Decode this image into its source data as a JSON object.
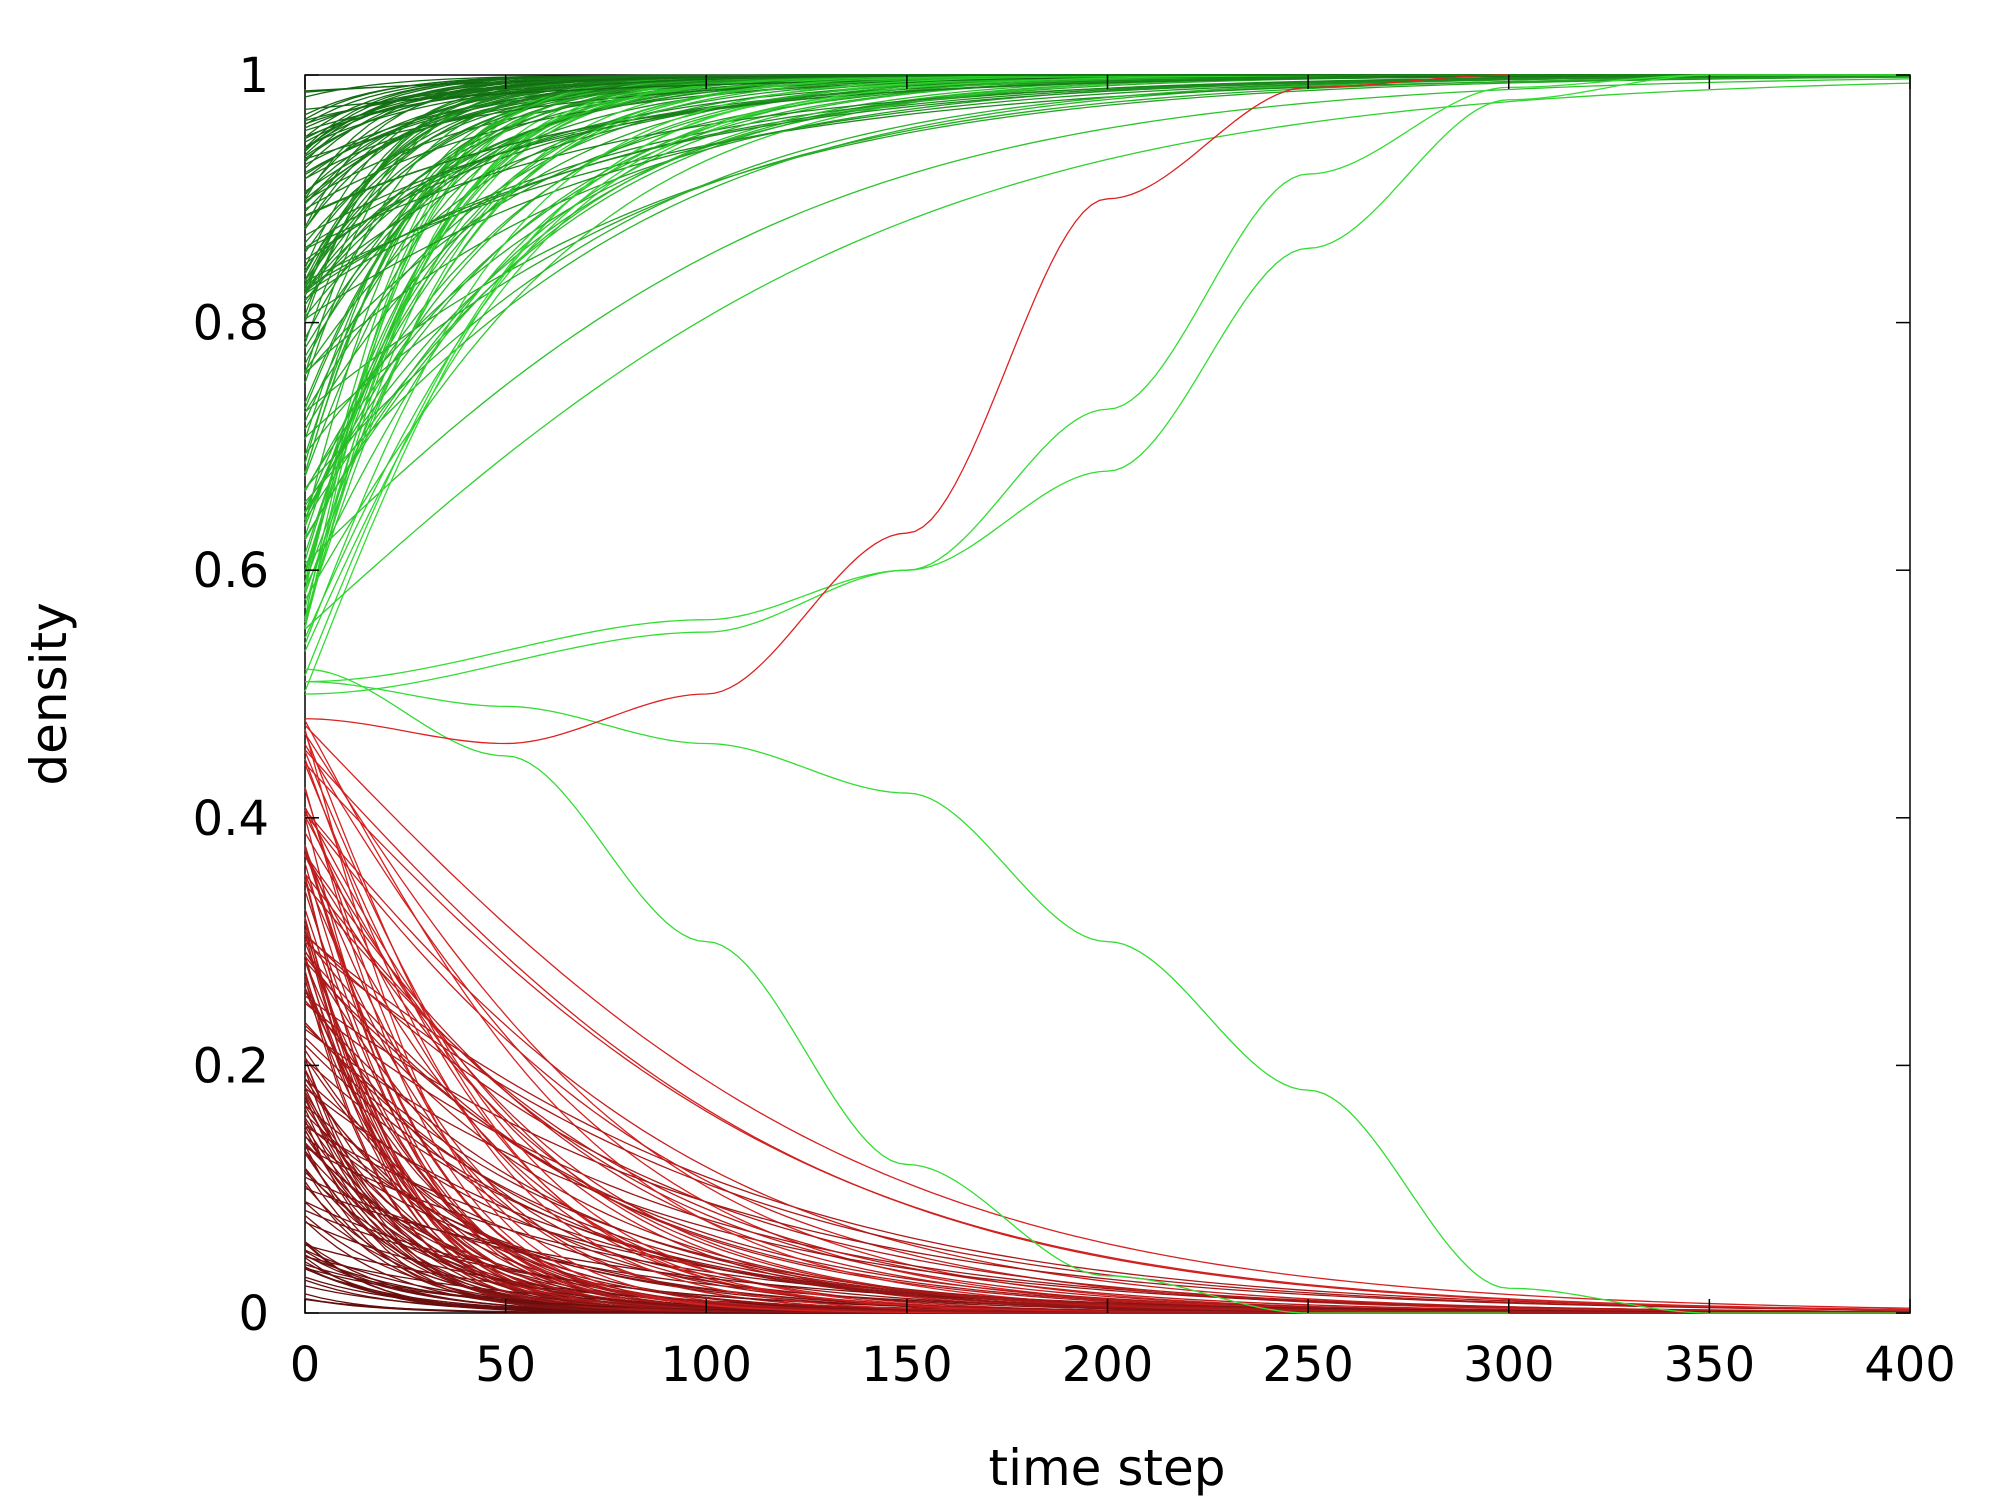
{
  "chart_data": {
    "type": "line",
    "title": "",
    "xlabel": "time step",
    "ylabel": "density",
    "xlim": [
      0,
      400
    ],
    "ylim": [
      0,
      1
    ],
    "xticks": [
      "0",
      "50",
      "100",
      "150",
      "200",
      "250",
      "300",
      "350",
      "400"
    ],
    "yticks": [
      "0",
      "0.2",
      "0.4",
      "0.6",
      "0.8",
      "1"
    ],
    "grid": false,
    "legend": "none",
    "colors": {
      "green_bright": "#33dd33",
      "green_dark": "#0b4d0b",
      "red_bright": "#dd2222",
      "red_dark": "#4a0808",
      "axis": "#000000"
    },
    "series_note_counts": {
      "rising_to_1": 140,
      "falling_to_0": 140
    },
    "series": [
      {
        "color": "#33dd33",
        "x": [
          0,
          100,
          150,
          200,
          250,
          300,
          350,
          400
        ],
        "y": [
          0.5,
          0.55,
          0.6,
          0.73,
          0.92,
          0.99,
          1.0,
          1.0
        ]
      },
      {
        "color": "#33dd33",
        "x": [
          0,
          100,
          150,
          200,
          250,
          300,
          350,
          400
        ],
        "y": [
          0.51,
          0.56,
          0.6,
          0.68,
          0.86,
          0.98,
          1.0,
          1.0
        ]
      },
      {
        "color": "#33dd33",
        "x": [
          0,
          50,
          100,
          150,
          200,
          250,
          300,
          350,
          400
        ],
        "y": [
          0.51,
          0.49,
          0.46,
          0.42,
          0.3,
          0.18,
          0.02,
          0.0,
          0.0
        ]
      },
      {
        "color": "#33dd33",
        "x": [
          0,
          50,
          100,
          150,
          200,
          250,
          300
        ],
        "y": [
          0.52,
          0.45,
          0.3,
          0.12,
          0.03,
          0.0,
          0.0
        ]
      },
      {
        "color": "#dd2222",
        "x": [
          0,
          50,
          100,
          150,
          200,
          250,
          300
        ],
        "y": [
          0.48,
          0.46,
          0.5,
          0.63,
          0.9,
          0.99,
          1.0
        ]
      }
    ]
  }
}
